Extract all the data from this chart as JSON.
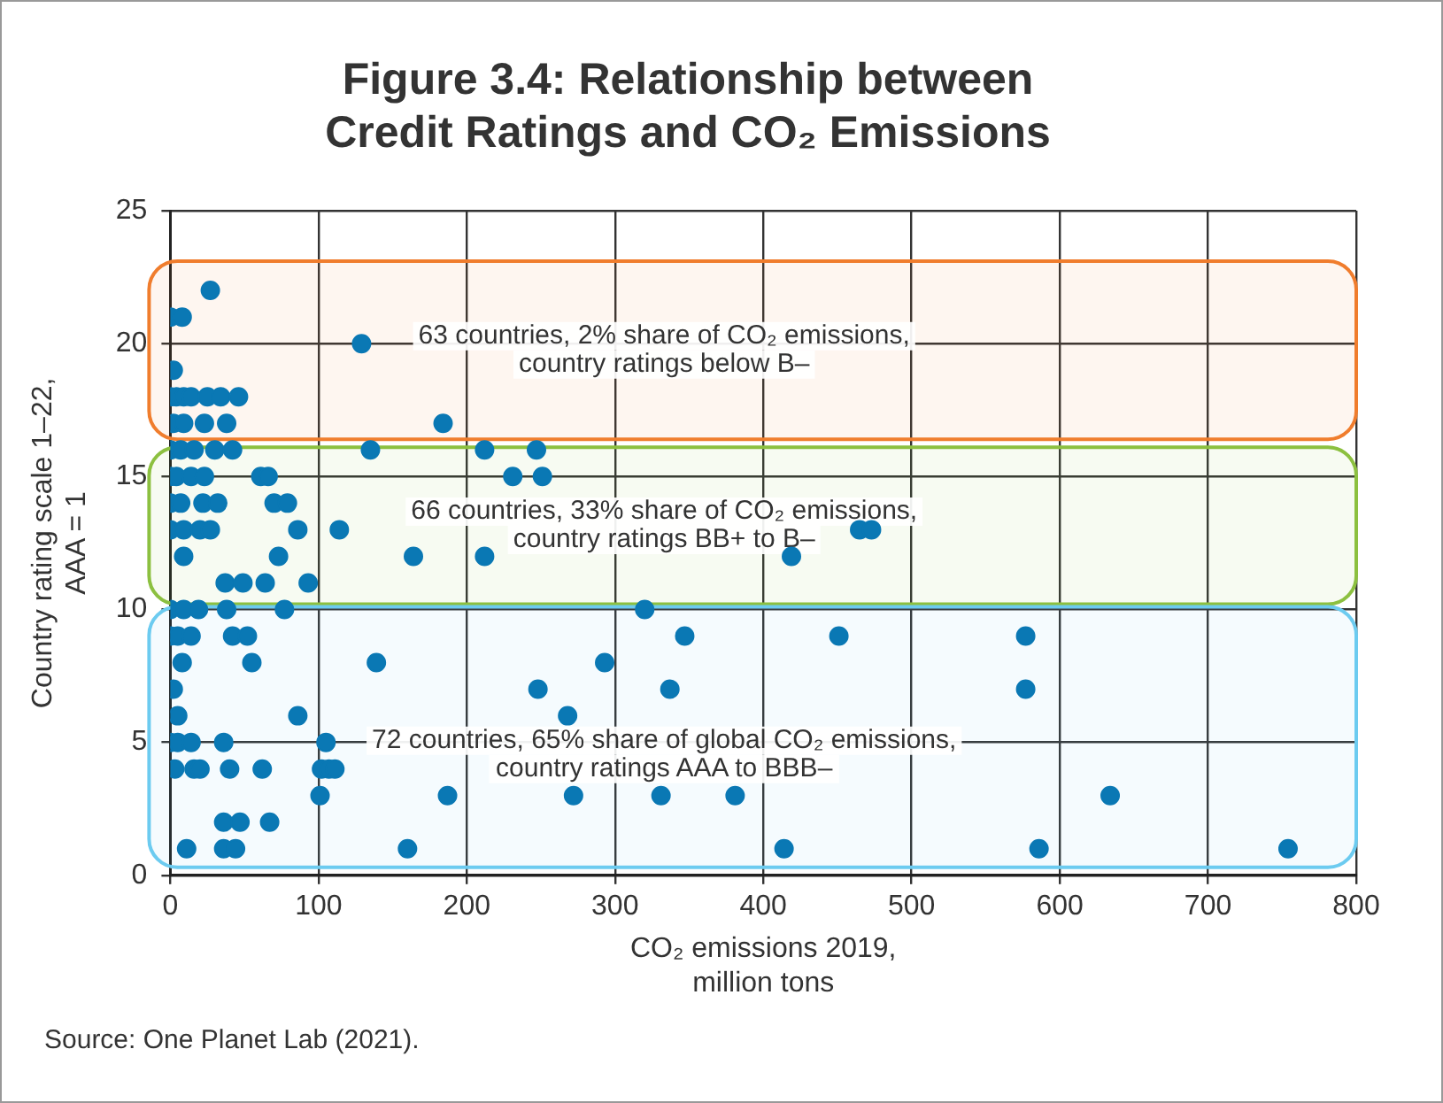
{
  "chart_data": {
    "type": "scatter",
    "title": "Figure 3.4: Relationship between\nCredit Ratings and CO₂ Emissions",
    "xlabel": "CO₂ emissions 2019,\nmillion tons",
    "ylabel": "Country rating scale 1–22,\nAAA = 1",
    "x": [
      27,
      0,
      8,
      129,
      2,
      0,
      4,
      9,
      14,
      25,
      34,
      46,
      2,
      9,
      23,
      38,
      184,
      0,
      7,
      16,
      30,
      42,
      135,
      212,
      247,
      0,
      4,
      14,
      23,
      61,
      66,
      231,
      251,
      0,
      7,
      22,
      32,
      70,
      79,
      0,
      9,
      20,
      27,
      86,
      114,
      465,
      473,
      9,
      73,
      164,
      212,
      419,
      37,
      49,
      64,
      93,
      0,
      9,
      19,
      38,
      77,
      320,
      0,
      5,
      14,
      42,
      52,
      347,
      451,
      577,
      8,
      55,
      139,
      293,
      2,
      248,
      337,
      577,
      5,
      86,
      268,
      0,
      5,
      14,
      36,
      105,
      3,
      16,
      20,
      40,
      62,
      102,
      107,
      111,
      101,
      187,
      272,
      331,
      381,
      634,
      36,
      47,
      67,
      11,
      36,
      44,
      160,
      414,
      586,
      754
    ],
    "values": [
      22,
      21,
      21,
      20,
      19,
      18,
      18,
      18,
      18,
      18,
      18,
      18,
      17,
      17,
      17,
      17,
      17,
      16,
      16,
      16,
      16,
      16,
      16,
      16,
      16,
      15,
      15,
      15,
      15,
      15,
      15,
      15,
      15,
      14,
      14,
      14,
      14,
      14,
      14,
      13,
      13,
      13,
      13,
      13,
      13,
      13,
      13,
      12,
      12,
      12,
      12,
      12,
      11,
      11,
      11,
      11,
      10,
      10,
      10,
      10,
      10,
      10,
      9,
      9,
      9,
      9,
      9,
      9,
      9,
      9,
      8,
      8,
      8,
      8,
      7,
      7,
      7,
      7,
      6,
      6,
      6,
      5,
      5,
      5,
      5,
      5,
      4,
      4,
      4,
      4,
      4,
      4,
      4,
      4,
      3,
      3,
      3,
      3,
      3,
      3,
      2,
      2,
      2,
      1,
      1,
      1,
      1,
      1,
      1,
      1
    ],
    "color": "#0a78b4",
    "marker": "circle",
    "xlim": [
      0,
      800
    ],
    "xticks": [
      0,
      100,
      200,
      300,
      400,
      500,
      600,
      700,
      800
    ],
    "ylim": [
      0,
      25
    ],
    "yticks": [
      0,
      5,
      10,
      15,
      20,
      25
    ],
    "grid": true,
    "legend": false,
    "bands": [
      {
        "axis": "y",
        "from": 16.4,
        "to": 23.1,
        "label": "63 countries, 2% share of CO₂ emissions,\ncountry ratings below B–",
        "color": "#f07d2d"
      },
      {
        "axis": "y",
        "from": 10.2,
        "to": 16.1,
        "label": "66 countries, 33% share of CO₂ emissions,\ncountry ratings BB+ to B–",
        "color": "#8cc040"
      },
      {
        "axis": "y",
        "from": 0.3,
        "to": 10.1,
        "label": "72 countries, 65% share of global CO₂ emissions,\ncountry ratings AAA to BBB–",
        "color": "#6ccbf0"
      }
    ],
    "annotations": [
      "Source: One Planet Lab (2021)."
    ]
  }
}
